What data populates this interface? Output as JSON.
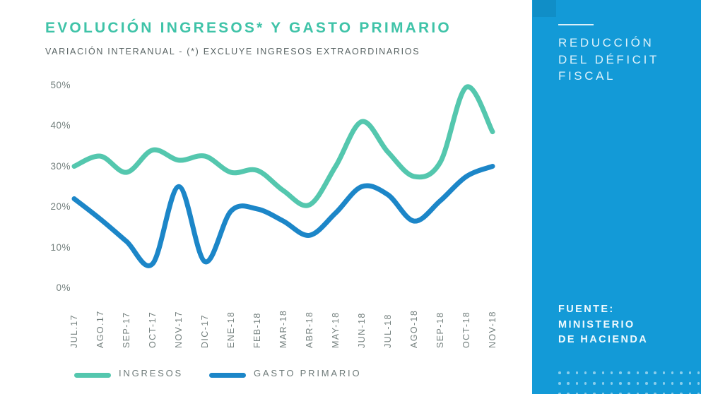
{
  "page": {
    "background": "#ffffff"
  },
  "chart_data": {
    "type": "line",
    "title": "EVOLUCIÓN INGRESOS* Y GASTO PRIMARIO",
    "subtitle": "VARIACIÓN INTERANUAL - (*) EXCLUYE INGRESOS EXTRAORDINARIOS",
    "title_color": "#3fc3a8",
    "unit": "%",
    "categories": [
      "JUL.17",
      "AGO.17",
      "SEP-17",
      "OCT-17",
      "NOV-17",
      "DIC-17",
      "ENE-18",
      "FEB-18",
      "MAR-18",
      "ABR-18",
      "MAY-18",
      "JUN-18",
      "JUL-18",
      "AGO-18",
      "SEP-18",
      "OCT-18",
      "NOV-18"
    ],
    "series": [
      {
        "name": "INGRESOS",
        "color": "#54c7ae",
        "values": [
          30,
          32.5,
          28.5,
          34,
          31.5,
          32.5,
          28.5,
          29,
          24,
          20.5,
          30,
          41,
          33.5,
          27.5,
          31,
          49.5,
          38.5
        ]
      },
      {
        "name": "GASTO PRIMARIO",
        "color": "#1c86c8",
        "values": [
          22,
          17,
          11.5,
          6,
          25,
          6.5,
          19,
          19.5,
          16.5,
          13,
          18.5,
          25,
          23,
          16.5,
          21.5,
          27.5,
          30
        ]
      }
    ],
    "y_ticks": [
      50,
      40,
      30,
      20,
      10,
      0
    ],
    "y_tick_labels": [
      "50%",
      "40%",
      "30%",
      "20%",
      "10%",
      "0%"
    ],
    "ylim": [
      0,
      55
    ],
    "grid": false,
    "legend_position": "bottom"
  },
  "sidebar": {
    "background": "#139ad7",
    "heading_lines": [
      "REDUCCIÓN",
      "DEL DÉFICIT",
      "FISCAL"
    ],
    "source_lines": [
      "FUENTE:",
      "MINISTERIO",
      "DE HACIENDA"
    ]
  }
}
